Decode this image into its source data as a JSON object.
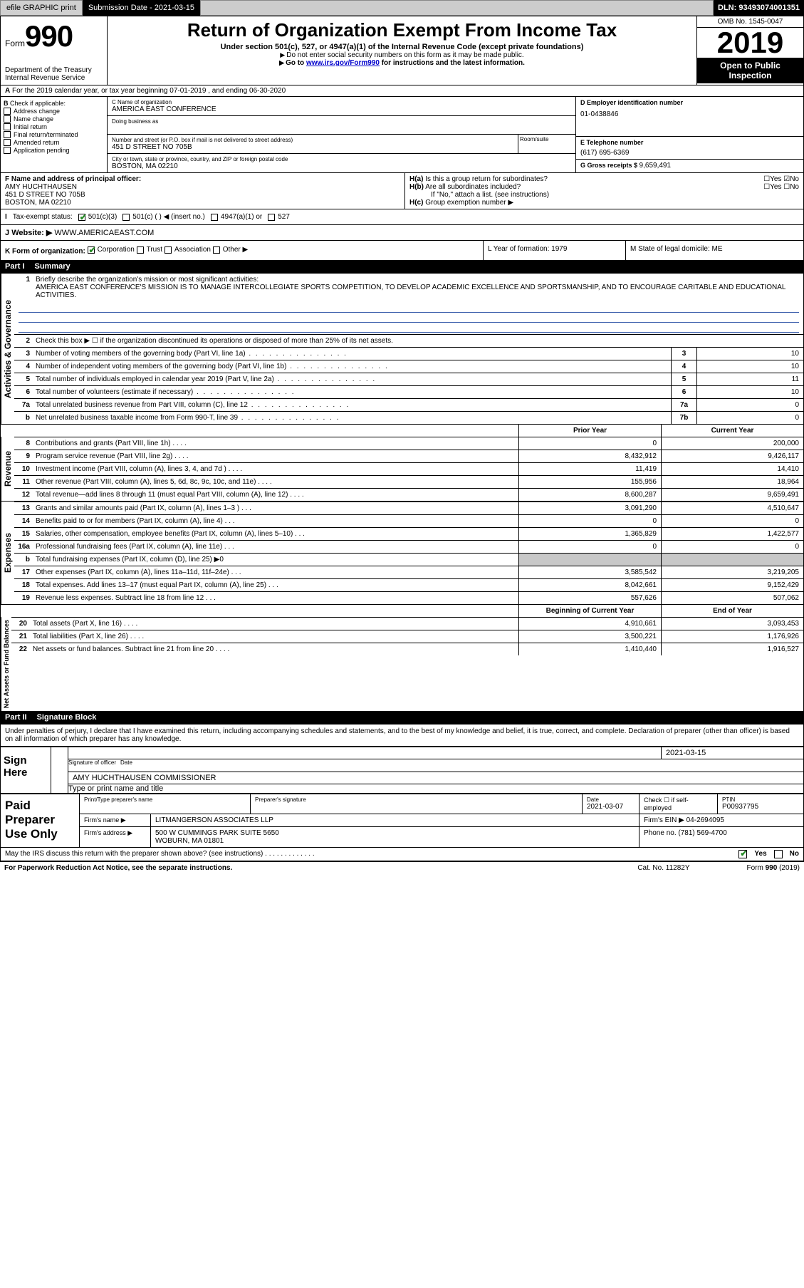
{
  "topbar": {
    "efile": "efile GRAPHIC print",
    "submission_label": "Submission Date - 2021-03-15",
    "dln": "DLN: 93493074001351"
  },
  "header": {
    "form_prefix": "Form",
    "form_num": "990",
    "title": "Return of Organization Exempt From Income Tax",
    "sub1": "Under section 501(c), 527, or 4947(a)(1) of the Internal Revenue Code (except private foundations)",
    "sub2": "Do not enter social security numbers on this form as it may be made public.",
    "sub3_pre": "Go to ",
    "sub3_link": "www.irs.gov/Form990",
    "sub3_post": " for instructions and the latest information.",
    "dept1": "Department of the Treasury",
    "dept2": "Internal Revenue Service",
    "omb": "OMB No. 1545-0047",
    "year": "2019",
    "otp": "Open to Public Inspection"
  },
  "row_a": "For the 2019 calendar year, or tax year beginning 07-01-2019     , and ending 06-30-2020",
  "box_b": {
    "label": "Check if applicable:",
    "items": [
      "Address change",
      "Name change",
      "Initial return",
      "Final return/terminated",
      "Amended return",
      "Application pending"
    ]
  },
  "box_c": {
    "name_lbl": "C Name of organization",
    "name": "AMERICA EAST CONFERENCE",
    "dba_lbl": "Doing business as",
    "addr_lbl": "Number and street (or P.O. box if mail is not delivered to street address)",
    "addr": "451 D STREET NO 705B",
    "room_lbl": "Room/suite",
    "city_lbl": "City or town, state or province, country, and ZIP or foreign postal code",
    "city": "BOSTON, MA  02210"
  },
  "box_d": {
    "lbl": "D Employer identification number",
    "val": "01-0438846"
  },
  "box_e": {
    "lbl": "E Telephone number",
    "val": "(617) 695-6369"
  },
  "box_g": {
    "lbl": "G Gross receipts $ ",
    "val": "9,659,491"
  },
  "box_f": {
    "lbl": "F  Name and address of principal officer:",
    "name": "AMY HUCHTHAUSEN",
    "addr1": "451 D STREET NO 705B",
    "addr2": "BOSTON, MA  02210"
  },
  "box_h": {
    "ha": "Is this a group return for subordinates?",
    "hb": "Are all subordinates included?",
    "hb_note": "If \"No,\" attach a list. (see instructions)",
    "hc": "Group exemption number"
  },
  "row_i": {
    "lbl": "Tax-exempt status:",
    "opts": [
      "501(c)(3)",
      "501(c) (  ) ◀ (insert no.)",
      "4947(a)(1) or",
      "527"
    ]
  },
  "row_j": {
    "lbl": "Website: ▶",
    "val": "WWW.AMERICAEAST.COM"
  },
  "row_k": {
    "k": "K Form of organization:",
    "k_opts": [
      "Corporation",
      "Trust",
      "Association",
      "Other ▶"
    ],
    "l": "L Year of formation: 1979",
    "m": "M State of legal domicile: ME"
  },
  "part1": {
    "num": "Part I",
    "title": "Summary",
    "vtab_ag": "Activities & Governance",
    "vtab_rev": "Revenue",
    "vtab_exp": "Expenses",
    "vtab_na": "Net Assets or Fund Balances",
    "l1_lbl": "Briefly describe the organization's mission or most significant activities:",
    "l1_txt": "AMERICA EAST CONFERENCE'S MISSION IS TO MANAGE INTERCOLLEGIATE SPORTS COMPETITION, TO DEVELOP ACADEMIC EXCELLENCE AND SPORTSMANSHIP, AND TO ENCOURAGE CARITABLE AND EDUCATIONAL ACTIVITIES.",
    "l2": "Check this box ▶ ☐  if the organization discontinued its operations or disposed of more than 25% of its net assets.",
    "l3": {
      "txt": "Number of voting members of the governing body (Part VI, line 1a)",
      "key": "3",
      "val": "10"
    },
    "l4": {
      "txt": "Number of independent voting members of the governing body (Part VI, line 1b)",
      "key": "4",
      "val": "10"
    },
    "l5": {
      "txt": "Total number of individuals employed in calendar year 2019 (Part V, line 2a)",
      "key": "5",
      "val": "11"
    },
    "l6": {
      "txt": "Total number of volunteers (estimate if necessary)",
      "key": "6",
      "val": "10"
    },
    "l7a": {
      "txt": "Total unrelated business revenue from Part VIII, column (C), line 12",
      "key": "7a",
      "val": "0"
    },
    "l7b": {
      "txt": "Net unrelated business taxable income from Form 990-T, line 39",
      "key": "7b",
      "val": "0"
    },
    "hdr_prior": "Prior Year",
    "hdr_curr": "Current Year",
    "lines2": [
      {
        "n": "8",
        "txt": "Contributions and grants (Part VIII, line 1h)",
        "c1": "0",
        "c2": "200,000"
      },
      {
        "n": "9",
        "txt": "Program service revenue (Part VIII, line 2g)",
        "c1": "8,432,912",
        "c2": "9,426,117"
      },
      {
        "n": "10",
        "txt": "Investment income (Part VIII, column (A), lines 3, 4, and 7d )",
        "c1": "11,419",
        "c2": "14,410"
      },
      {
        "n": "11",
        "txt": "Other revenue (Part VIII, column (A), lines 5, 6d, 8c, 9c, 10c, and 11e)",
        "c1": "155,956",
        "c2": "18,964"
      },
      {
        "n": "12",
        "txt": "Total revenue—add lines 8 through 11 (must equal Part VIII, column (A), line 12)",
        "c1": "8,600,287",
        "c2": "9,659,491"
      }
    ],
    "lines3": [
      {
        "n": "13",
        "txt": "Grants and similar amounts paid (Part IX, column (A), lines 1–3 )",
        "c1": "3,091,290",
        "c2": "4,510,647"
      },
      {
        "n": "14",
        "txt": "Benefits paid to or for members (Part IX, column (A), line 4)",
        "c1": "0",
        "c2": "0"
      },
      {
        "n": "15",
        "txt": "Salaries, other compensation, employee benefits (Part IX, column (A), lines 5–10)",
        "c1": "1,365,829",
        "c2": "1,422,577"
      },
      {
        "n": "16a",
        "txt": "Professional fundraising fees (Part IX, column (A), line 11e)",
        "c1": "0",
        "c2": "0"
      }
    ],
    "l16b": "Total fundraising expenses (Part IX, column (D), line 25) ▶0",
    "lines4": [
      {
        "n": "17",
        "txt": "Other expenses (Part IX, column (A), lines 11a–11d, 11f–24e)",
        "c1": "3,585,542",
        "c2": "3,219,205"
      },
      {
        "n": "18",
        "txt": "Total expenses. Add lines 13–17 (must equal Part IX, column (A), line 25)",
        "c1": "8,042,661",
        "c2": "9,152,429"
      },
      {
        "n": "19",
        "txt": "Revenue less expenses. Subtract line 18 from line 12",
        "c1": "557,626",
        "c2": "507,062"
      }
    ],
    "hdr_boy": "Beginning of Current Year",
    "hdr_eoy": "End of Year",
    "lines5": [
      {
        "n": "20",
        "txt": "Total assets (Part X, line 16)",
        "c1": "4,910,661",
        "c2": "3,093,453"
      },
      {
        "n": "21",
        "txt": "Total liabilities (Part X, line 26)",
        "c1": "3,500,221",
        "c2": "1,176,926"
      },
      {
        "n": "22",
        "txt": "Net assets or fund balances. Subtract line 21 from line 20",
        "c1": "1,410,440",
        "c2": "1,916,527"
      }
    ]
  },
  "part2": {
    "num": "Part II",
    "title": "Signature Block",
    "decl": "Under penalties of perjury, I declare that I have examined this return, including accompanying schedules and statements, and to the best of my knowledge and belief, it is true, correct, and complete. Declaration of preparer (other than officer) is based on all information of which preparer has any knowledge.",
    "sign_here": "Sign Here",
    "sig_lbl": "Signature of officer",
    "date_lbl": "Date",
    "date": "2021-03-15",
    "name_title": "AMY HUCHTHAUSEN  COMMISSIONER",
    "name_lbl": "Type or print name and title",
    "paid": "Paid Preparer Use Only",
    "p_name_lbl": "Print/Type preparer's name",
    "p_sig_lbl": "Preparer's signature",
    "p_date_lbl": "Date",
    "p_date": "2021-03-07",
    "p_check": "Check ☐ if self-employed",
    "p_ptin_lbl": "PTIN",
    "p_ptin": "P00937795",
    "firm_name_lbl": "Firm's name    ▶",
    "firm_name": "LITMANGERSON ASSOCIATES LLP",
    "firm_ein_lbl": "Firm's EIN ▶",
    "firm_ein": "04-2694095",
    "firm_addr_lbl": "Firm's address ▶",
    "firm_addr1": "500 W CUMMINGS PARK SUITE 5650",
    "firm_addr2": "WOBURN, MA  01801",
    "phone_lbl": "Phone no.",
    "phone": "(781) 569-4700",
    "discuss": "May the IRS discuss this return with the preparer shown above? (see instructions)",
    "yes": "Yes",
    "no": "No"
  },
  "bottom": {
    "pra": "For Paperwork Reduction Act Notice, see the separate instructions.",
    "cat": "Cat. No. 11282Y",
    "form": "Form 990 (2019)"
  }
}
